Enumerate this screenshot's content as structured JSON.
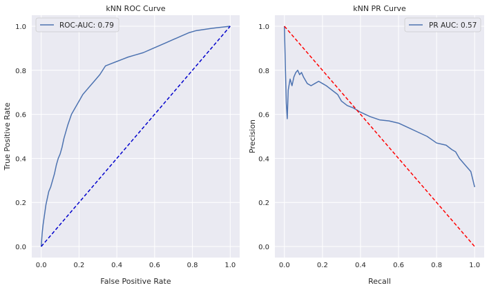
{
  "chart_data": [
    {
      "type": "line",
      "title": "kNN ROC Curve",
      "xlabel": "False Positive Rate",
      "ylabel": "True Positive Rate",
      "xlim": [
        -0.05,
        1.05
      ],
      "ylim": [
        -0.05,
        1.05
      ],
      "xticks": [
        "0.0",
        "0.2",
        "0.4",
        "0.6",
        "0.8",
        "1.0"
      ],
      "yticks": [
        "0.0",
        "0.2",
        "0.4",
        "0.6",
        "0.8",
        "1.0"
      ],
      "grid": true,
      "legend_position": "upper left",
      "series": [
        {
          "name": "ROC-AUC: 0.79",
          "color": "#4c72b0",
          "style": "solid",
          "x": [
            0,
            0.005,
            0.01,
            0.015,
            0.02,
            0.025,
            0.03,
            0.04,
            0.05,
            0.06,
            0.07,
            0.08,
            0.09,
            0.1,
            0.11,
            0.12,
            0.14,
            0.16,
            0.18,
            0.2,
            0.22,
            0.25,
            0.28,
            0.31,
            0.34,
            0.37,
            0.4,
            0.43,
            0.46,
            0.5,
            0.54,
            0.58,
            0.62,
            0.66,
            0.7,
            0.74,
            0.78,
            0.82,
            0.86,
            0.9,
            0.95,
            1.0
          ],
          "y": [
            0,
            0.06,
            0.1,
            0.13,
            0.16,
            0.19,
            0.21,
            0.25,
            0.27,
            0.3,
            0.33,
            0.37,
            0.4,
            0.42,
            0.45,
            0.49,
            0.55,
            0.6,
            0.63,
            0.66,
            0.69,
            0.72,
            0.75,
            0.78,
            0.82,
            0.83,
            0.84,
            0.85,
            0.86,
            0.87,
            0.88,
            0.895,
            0.91,
            0.925,
            0.94,
            0.955,
            0.97,
            0.98,
            0.985,
            0.99,
            0.995,
            1.0
          ]
        },
        {
          "name": "",
          "color": "#0000cc",
          "style": "dashed",
          "x": [
            0,
            1
          ],
          "y": [
            0,
            1
          ]
        }
      ]
    },
    {
      "type": "line",
      "title": "kNN PR Curve",
      "xlabel": "Recall",
      "ylabel": "Precision",
      "xlim": [
        -0.05,
        1.05
      ],
      "ylim": [
        -0.05,
        1.05
      ],
      "xticks": [
        "0.0",
        "0.2",
        "0.4",
        "0.6",
        "0.8",
        "1.0"
      ],
      "yticks": [
        "0.0",
        "0.2",
        "0.4",
        "0.6",
        "0.8",
        "1.0"
      ],
      "grid": true,
      "legend_position": "upper right",
      "series": [
        {
          "name": "PR AUC: 0.57",
          "color": "#4c72b0",
          "style": "solid",
          "x": [
            0,
            0.005,
            0.01,
            0.015,
            0.02,
            0.03,
            0.04,
            0.05,
            0.06,
            0.07,
            0.08,
            0.09,
            0.1,
            0.12,
            0.14,
            0.16,
            0.18,
            0.2,
            0.22,
            0.25,
            0.28,
            0.3,
            0.33,
            0.36,
            0.4,
            0.45,
            0.5,
            0.55,
            0.6,
            0.65,
            0.7,
            0.75,
            0.8,
            0.85,
            0.88,
            0.9,
            0.92,
            0.95,
            0.98,
            1.0
          ],
          "y": [
            1.0,
            0.82,
            0.65,
            0.58,
            0.71,
            0.76,
            0.73,
            0.77,
            0.79,
            0.8,
            0.78,
            0.79,
            0.77,
            0.74,
            0.73,
            0.74,
            0.75,
            0.74,
            0.73,
            0.71,
            0.69,
            0.66,
            0.64,
            0.63,
            0.61,
            0.59,
            0.575,
            0.57,
            0.56,
            0.54,
            0.52,
            0.5,
            0.47,
            0.46,
            0.44,
            0.43,
            0.4,
            0.37,
            0.34,
            0.27
          ]
        },
        {
          "name": "",
          "color": "#ff0000",
          "style": "dashed",
          "x": [
            0,
            1
          ],
          "y": [
            1,
            0
          ]
        }
      ]
    }
  ]
}
